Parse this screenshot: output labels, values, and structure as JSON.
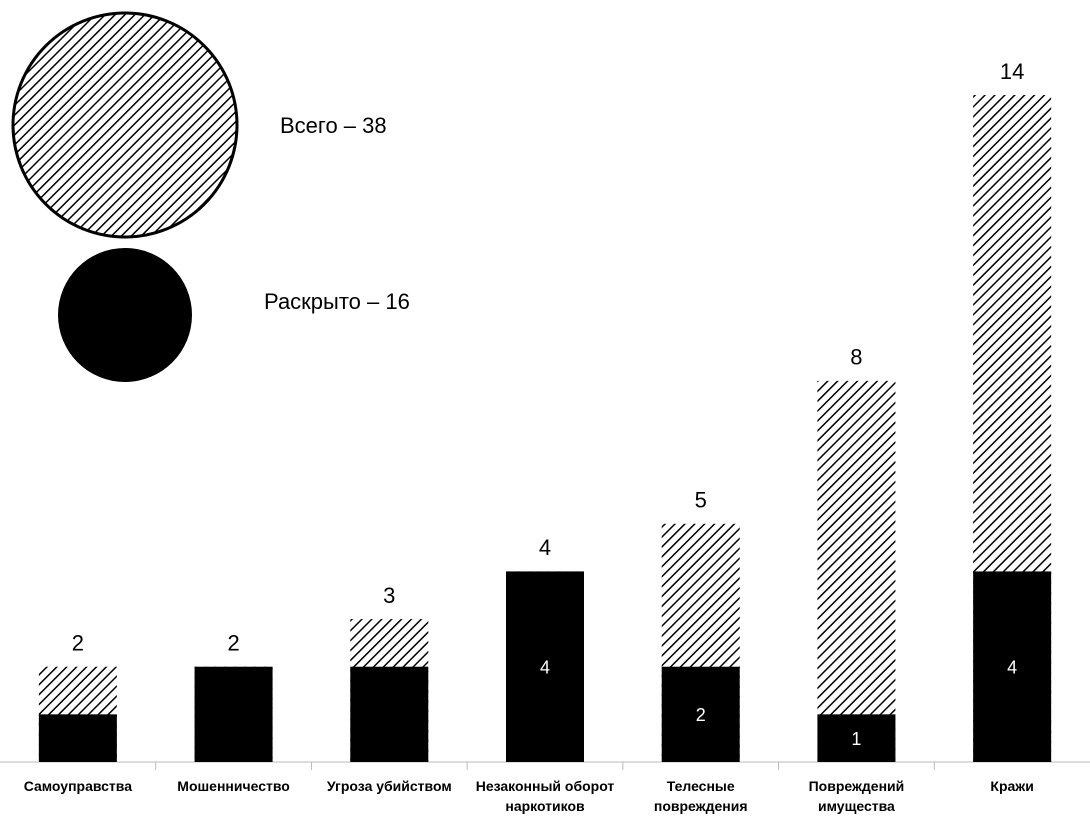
{
  "chart_data": {
    "type": "overlapped_bar",
    "categories": [
      "Самоуправства",
      "Мошенничество",
      "Угроза убийством",
      "Незаконный оборот наркотиков",
      "Телесные повреждения",
      "Повреждений имущества",
      "Кражи"
    ],
    "series": [
      {
        "name": "Всего – 38",
        "color": "#000000",
        "values": [
          2,
          2,
          3,
          4,
          5,
          8,
          14
        ]
      },
      {
        "name": "Раскрыто – 16",
        "color": "#000000",
        "values": [
          1,
          2,
          2,
          4,
          2,
          1,
          4
        ],
        "value_labels": [
          null,
          null,
          null,
          "4",
          "2",
          "1",
          "4"
        ]
      }
    ],
    "ylim": [
      0,
      14
    ]
  }
}
